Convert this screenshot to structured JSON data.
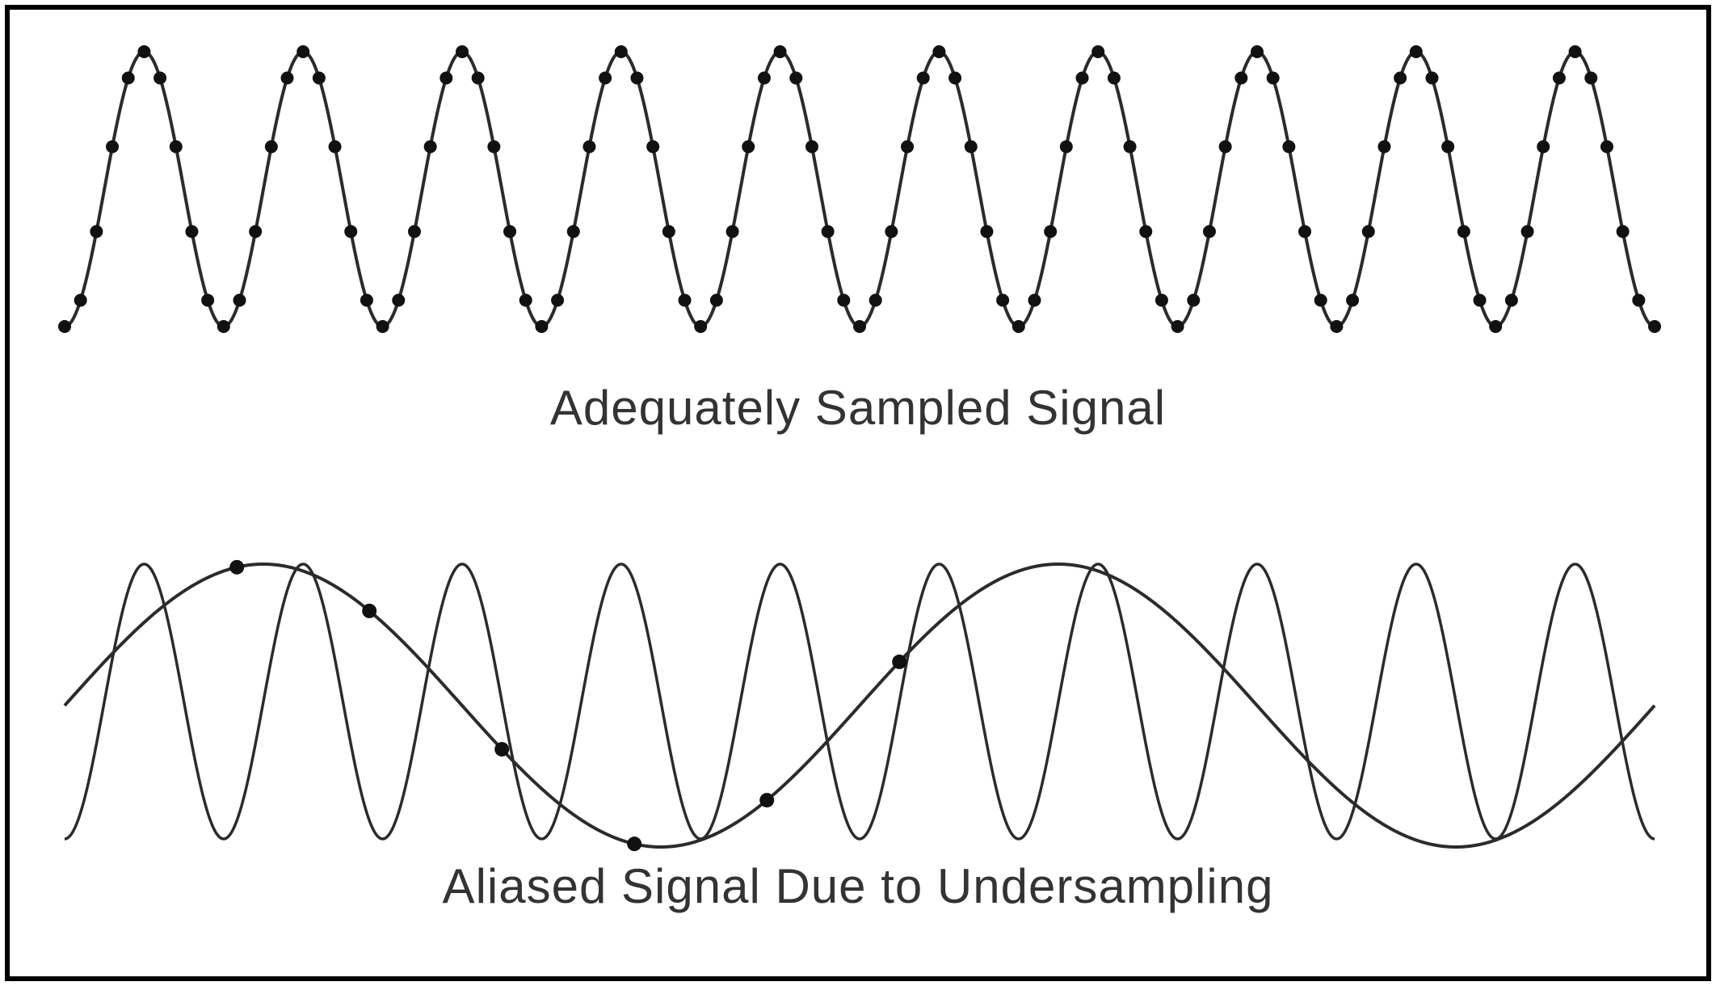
{
  "panels": {
    "top": {
      "caption": "Adequately Sampled Signal",
      "signal": {
        "cycles": 10,
        "samples_per_cycle": 10
      }
    },
    "bottom": {
      "caption": "Aliased Signal Due to Undersampling",
      "signal": {
        "cycles": 10
      },
      "alias": {
        "cycles": 2
      },
      "sample_count": 6
    }
  },
  "colors": {
    "line": "#2b2b2b",
    "dot": "#111111",
    "border": "#000000",
    "text": "#333333"
  }
}
